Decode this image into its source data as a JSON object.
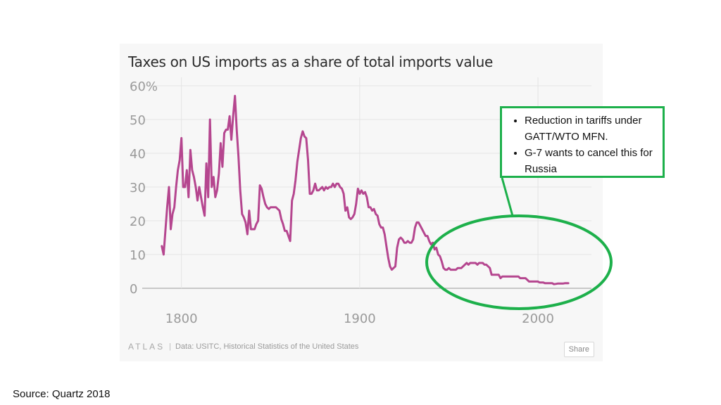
{
  "chart_data": {
    "type": "line",
    "title": "Taxes on US imports as a share of total imports value",
    "xlabel": "",
    "ylabel": "",
    "xlim": [
      1778,
      2030
    ],
    "ylim": [
      0,
      60
    ],
    "x_ticks": [
      "1800",
      "1900",
      "2000"
    ],
    "y_ticks": [
      "60%",
      "50",
      "40",
      "30",
      "20",
      "10",
      "0"
    ],
    "grid": true,
    "series": [
      {
        "color": "#b5468f",
        "points": [
          [
            1789,
            12.5
          ],
          [
            1790,
            10
          ],
          [
            1791,
            17
          ],
          [
            1792,
            24
          ],
          [
            1793,
            30
          ],
          [
            1794,
            17.5
          ],
          [
            1795,
            22
          ],
          [
            1796,
            24
          ],
          [
            1797,
            30
          ],
          [
            1798,
            35
          ],
          [
            1799,
            38
          ],
          [
            1800,
            44.5
          ],
          [
            1801,
            30
          ],
          [
            1802,
            30
          ],
          [
            1803,
            35
          ],
          [
            1804,
            27
          ],
          [
            1805,
            41
          ],
          [
            1806,
            35
          ],
          [
            1807,
            33
          ],
          [
            1808,
            30
          ],
          [
            1809,
            26
          ],
          [
            1810,
            30
          ],
          [
            1811,
            27
          ],
          [
            1812,
            24
          ],
          [
            1813,
            21.5
          ],
          [
            1814,
            37
          ],
          [
            1815,
            27
          ],
          [
            1816,
            50
          ],
          [
            1817,
            30
          ],
          [
            1818,
            33
          ],
          [
            1819,
            27
          ],
          [
            1820,
            29
          ],
          [
            1821,
            34
          ],
          [
            1822,
            43
          ],
          [
            1823,
            36
          ],
          [
            1824,
            46
          ],
          [
            1825,
            47
          ],
          [
            1826,
            47
          ],
          [
            1827,
            51
          ],
          [
            1828,
            44
          ],
          [
            1829,
            51
          ],
          [
            1830,
            57
          ],
          [
            1831,
            47
          ],
          [
            1832,
            39
          ],
          [
            1833,
            29
          ],
          [
            1834,
            22
          ],
          [
            1835,
            21
          ],
          [
            1836,
            19.5
          ],
          [
            1837,
            16
          ],
          [
            1838,
            23
          ],
          [
            1839,
            17.5
          ],
          [
            1840,
            17.5
          ],
          [
            1841,
            17.5
          ],
          [
            1842,
            19
          ],
          [
            1843,
            20
          ],
          [
            1844,
            30.5
          ],
          [
            1845,
            29.5
          ],
          [
            1846,
            27
          ],
          [
            1847,
            25
          ],
          [
            1848,
            24
          ],
          [
            1849,
            23.5
          ],
          [
            1850,
            24
          ],
          [
            1851,
            24
          ],
          [
            1852,
            24
          ],
          [
            1853,
            24
          ],
          [
            1854,
            23.5
          ],
          [
            1855,
            23
          ],
          [
            1856,
            20.5
          ],
          [
            1857,
            19
          ],
          [
            1858,
            17
          ],
          [
            1859,
            17
          ],
          [
            1860,
            15.5
          ],
          [
            1861,
            14
          ],
          [
            1862,
            26
          ],
          [
            1863,
            28
          ],
          [
            1864,
            32
          ],
          [
            1865,
            37.5
          ],
          [
            1866,
            41
          ],
          [
            1867,
            44.5
          ],
          [
            1868,
            46.5
          ],
          [
            1869,
            45
          ],
          [
            1870,
            44.5
          ],
          [
            1871,
            38
          ],
          [
            1872,
            28
          ],
          [
            1873,
            28
          ],
          [
            1874,
            29
          ],
          [
            1875,
            31
          ],
          [
            1876,
            29
          ],
          [
            1877,
            29
          ],
          [
            1878,
            29.5
          ],
          [
            1879,
            30
          ],
          [
            1880,
            29
          ],
          [
            1881,
            30
          ],
          [
            1882,
            29.5
          ],
          [
            1883,
            30
          ],
          [
            1884,
            30
          ],
          [
            1885,
            31
          ],
          [
            1886,
            30
          ],
          [
            1887,
            31
          ],
          [
            1888,
            31
          ],
          [
            1889,
            30
          ],
          [
            1890,
            29.5
          ],
          [
            1891,
            28
          ],
          [
            1892,
            23
          ],
          [
            1893,
            24
          ],
          [
            1894,
            21
          ],
          [
            1895,
            20.5
          ],
          [
            1896,
            21
          ],
          [
            1897,
            22
          ],
          [
            1898,
            25
          ],
          [
            1899,
            29.5
          ],
          [
            1900,
            28
          ],
          [
            1901,
            29
          ],
          [
            1902,
            28
          ],
          [
            1903,
            28.5
          ],
          [
            1904,
            27
          ],
          [
            1905,
            24
          ],
          [
            1906,
            24
          ],
          [
            1907,
            23
          ],
          [
            1908,
            23.5
          ],
          [
            1909,
            22
          ],
          [
            1910,
            21.5
          ],
          [
            1911,
            19
          ],
          [
            1912,
            18
          ],
          [
            1913,
            18
          ],
          [
            1914,
            16
          ],
          [
            1915,
            12.5
          ],
          [
            1916,
            9
          ],
          [
            1917,
            6.5
          ],
          [
            1918,
            5.5
          ],
          [
            1919,
            6
          ],
          [
            1920,
            6.5
          ],
          [
            1921,
            12
          ],
          [
            1922,
            14.5
          ],
          [
            1923,
            15
          ],
          [
            1924,
            14.5
          ],
          [
            1925,
            13.5
          ],
          [
            1926,
            13.5
          ],
          [
            1927,
            14
          ],
          [
            1928,
            13.5
          ],
          [
            1929,
            13.5
          ],
          [
            1930,
            14.5
          ],
          [
            1931,
            18
          ],
          [
            1932,
            19.5
          ],
          [
            1933,
            19.5
          ],
          [
            1934,
            18.5
          ],
          [
            1935,
            17.5
          ],
          [
            1936,
            16.5
          ],
          [
            1937,
            15.5
          ],
          [
            1938,
            15.5
          ],
          [
            1939,
            14
          ],
          [
            1940,
            13
          ],
          [
            1941,
            13.5
          ],
          [
            1942,
            11.5
          ],
          [
            1943,
            12
          ],
          [
            1944,
            10
          ],
          [
            1945,
            9.5
          ],
          [
            1946,
            8
          ],
          [
            1947,
            6
          ],
          [
            1948,
            5.5
          ],
          [
            1949,
            5.5
          ],
          [
            1950,
            6
          ],
          [
            1951,
            5.5
          ],
          [
            1952,
            5.5
          ],
          [
            1953,
            5.5
          ],
          [
            1954,
            5.5
          ],
          [
            1955,
            6
          ],
          [
            1956,
            6
          ],
          [
            1957,
            6
          ],
          [
            1958,
            6.5
          ],
          [
            1959,
            7
          ],
          [
            1960,
            7.5
          ],
          [
            1961,
            7
          ],
          [
            1962,
            7.5
          ],
          [
            1963,
            7.5
          ],
          [
            1964,
            7.5
          ],
          [
            1965,
            7.5
          ],
          [
            1966,
            7
          ],
          [
            1967,
            7.5
          ],
          [
            1968,
            7.5
          ],
          [
            1969,
            7.5
          ],
          [
            1970,
            7
          ],
          [
            1971,
            7
          ],
          [
            1972,
            6.5
          ],
          [
            1973,
            6
          ],
          [
            1974,
            4
          ],
          [
            1975,
            4
          ],
          [
            1976,
            4
          ],
          [
            1977,
            4
          ],
          [
            1978,
            4
          ],
          [
            1979,
            3
          ],
          [
            1980,
            3.5
          ],
          [
            1981,
            3.5
          ],
          [
            1982,
            3.5
          ],
          [
            1983,
            3.5
          ],
          [
            1984,
            3.5
          ],
          [
            1985,
            3.5
          ],
          [
            1986,
            3.5
          ],
          [
            1987,
            3.5
          ],
          [
            1988,
            3.5
          ],
          [
            1989,
            3.5
          ],
          [
            1990,
            3
          ],
          [
            1991,
            3
          ],
          [
            1992,
            3
          ],
          [
            1993,
            3
          ],
          [
            1994,
            2.5
          ],
          [
            1995,
            2
          ],
          [
            1996,
            2
          ],
          [
            1997,
            2
          ],
          [
            1998,
            2
          ],
          [
            1999,
            2
          ],
          [
            2000,
            2
          ],
          [
            2001,
            1.7
          ],
          [
            2002,
            1.7
          ],
          [
            2003,
            1.7
          ],
          [
            2004,
            1.5
          ],
          [
            2005,
            1.5
          ],
          [
            2006,
            1.5
          ],
          [
            2007,
            1.5
          ],
          [
            2008,
            1.5
          ],
          [
            2009,
            1.2
          ],
          [
            2010,
            1.3
          ],
          [
            2011,
            1.4
          ],
          [
            2012,
            1.4
          ],
          [
            2013,
            1.4
          ],
          [
            2014,
            1.4
          ],
          [
            2015,
            1.5
          ],
          [
            2016,
            1.5
          ],
          [
            2017,
            1.5
          ]
        ]
      }
    ]
  },
  "footer": {
    "logo": "ATLAS",
    "separator": "|",
    "data_source": "Data: USITC, Historical Statistics of the United States",
    "share_label": "Share"
  },
  "callout": {
    "bullets": [
      "Reduction in tariffs under GATT/WTO MFN.",
      "G-7 wants to cancel this for Russia"
    ],
    "color": "#1db04b"
  },
  "source_note": "Source: Quartz 2018"
}
